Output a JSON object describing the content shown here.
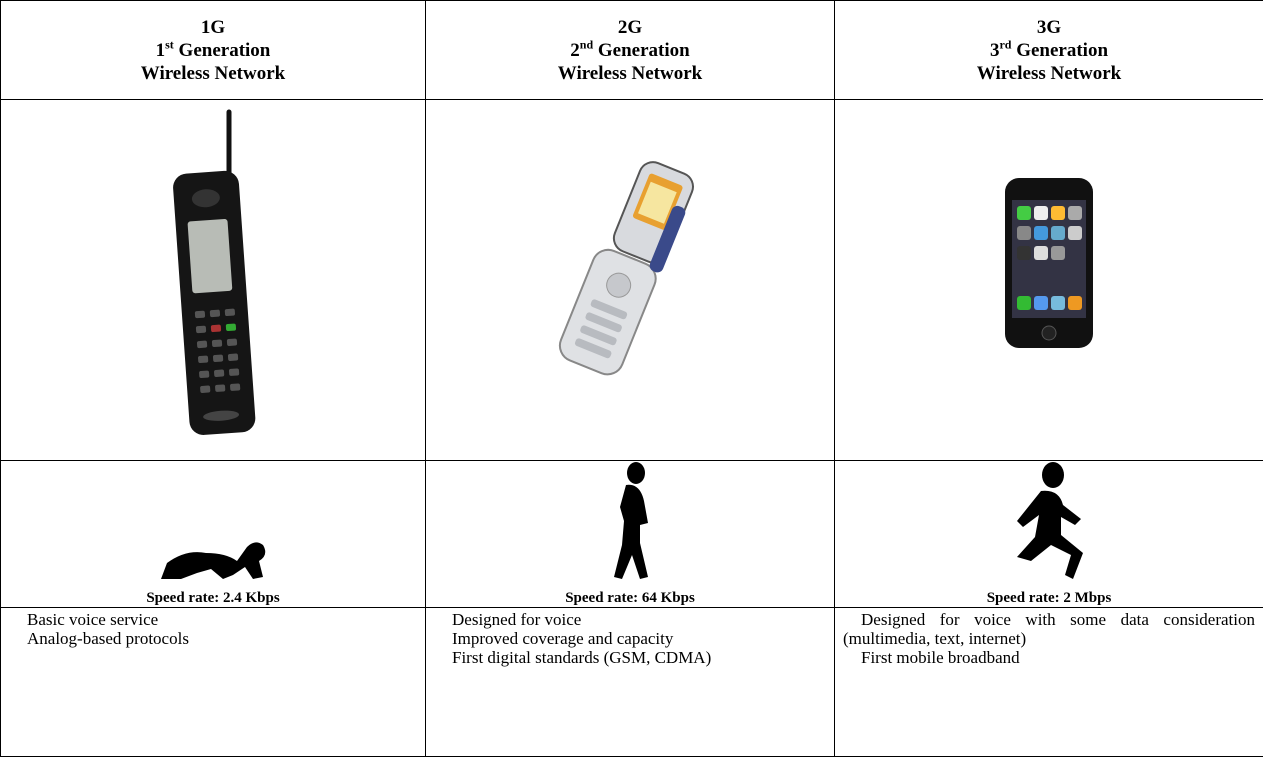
{
  "header": {
    "columns": [
      {
        "code": "1G",
        "ordinal": "1",
        "suffix": "st",
        "generation": "Generation",
        "network": "Wireless Network"
      },
      {
        "code": "2G",
        "ordinal": "2",
        "suffix": "nd",
        "generation": "Generation",
        "network": "Wireless Network"
      },
      {
        "code": "3G",
        "ordinal": "3",
        "suffix": "rd",
        "generation": "Generation",
        "network": "Wireless Network"
      }
    ]
  },
  "speeds": [
    "Speed rate: 2.4 Kbps",
    "Speed rate: 64 Kbps",
    "Speed rate: 2 Mbps"
  ],
  "features": [
    [
      "Basic voice service",
      "Analog-based protocols"
    ],
    [
      "Designed for voice",
      "Improved coverage and capacity",
      "First digital standards (GSM, CDMA)"
    ],
    [
      "Designed for voice with some data consideration (multimedia, text, internet)",
      "First mobile broadband"
    ]
  ]
}
